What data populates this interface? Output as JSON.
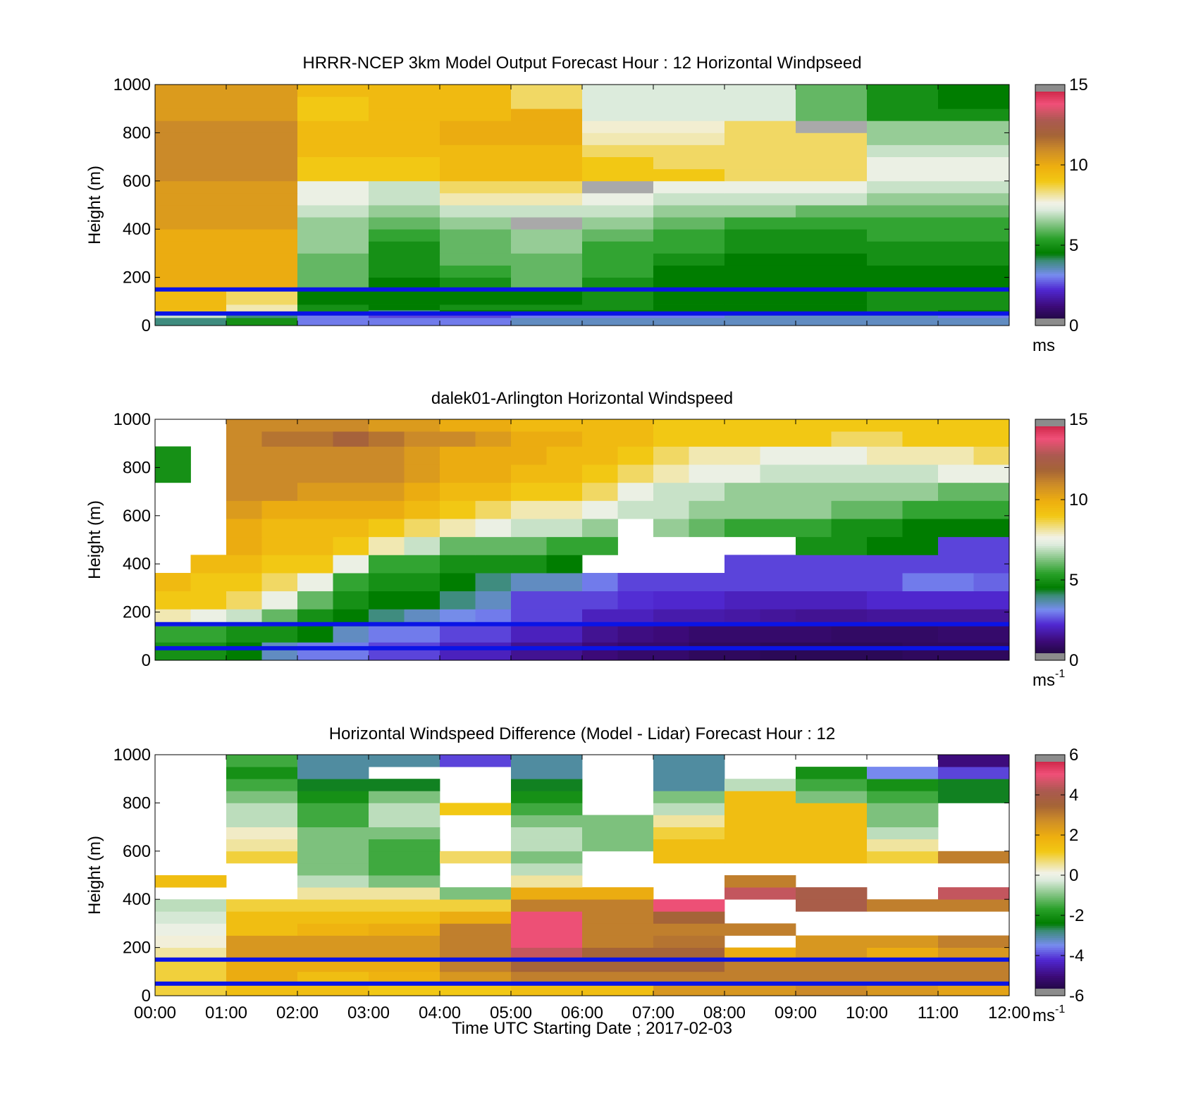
{
  "figure": {
    "xlabel": "Time UTC  Starting Date ; 2017-02-03",
    "x_tick_labels": [
      "00:00",
      "01:00",
      "02:00",
      "03:00",
      "04:00",
      "05:00",
      "06:00",
      "07:00",
      "08:00",
      "09:00",
      "10:00",
      "11:00",
      "12:00"
    ]
  },
  "chart_data": [
    {
      "type": "heatmap",
      "title": "HRRR-NCEP 3km Model Output   Forecast Hour : 12 Horizontal Windpseed",
      "ylabel": "Height (m)",
      "xlim": [
        0,
        12
      ],
      "ylim": [
        0,
        1000
      ],
      "y_ticks": [
        0,
        200,
        400,
        600,
        800,
        1000
      ],
      "grid": false,
      "colorbar": {
        "range": [
          0,
          15
        ],
        "ticks": [
          0,
          5,
          10,
          15
        ],
        "unit_base": "ms",
        "unit_sup": ""
      },
      "highlight_heights_m": [
        150,
        50
      ],
      "highlight_color": "#0a14e6",
      "time_columns_h": [
        0,
        1,
        2,
        3,
        4,
        5,
        6,
        7,
        8,
        9,
        10,
        11
      ],
      "heights_m": [
        25,
        40,
        55,
        75,
        100,
        125,
        175,
        225,
        275,
        325,
        375,
        425,
        475,
        525,
        575,
        625,
        675,
        725,
        775,
        825,
        875,
        925,
        975
      ],
      "values": [
        [
          4,
          5,
          3,
          3,
          3,
          3.5,
          3.5,
          3.5,
          3.5,
          3.5,
          3.5,
          3.5
        ],
        [
          7,
          4,
          3,
          2.5,
          2.5,
          3,
          3,
          3,
          3.5,
          3.5,
          3.5,
          3
        ],
        [
          9,
          8,
          5,
          4,
          4.5,
          4.5,
          4.5,
          4.5,
          4.5,
          4.5,
          5,
          4.5
        ],
        [
          9.5,
          8,
          5,
          4.5,
          5,
          5,
          5,
          4.5,
          4.5,
          4.5,
          5,
          5
        ],
        [
          9.5,
          8.5,
          4.5,
          4.5,
          4.5,
          4.5,
          5,
          4.5,
          4.5,
          4.5,
          5,
          5
        ],
        [
          9.5,
          8.5,
          4.5,
          4.5,
          4.5,
          4.5,
          5,
          4.5,
          4.5,
          4.5,
          5,
          5
        ],
        [
          10,
          10,
          6,
          4.5,
          5,
          6,
          5,
          4.5,
          4.5,
          4.5,
          4.5,
          4.5
        ],
        [
          10,
          10,
          6,
          5,
          5.5,
          6,
          5.5,
          4.5,
          4.5,
          4.5,
          4.5,
          4.5
        ],
        [
          10,
          10,
          6,
          5,
          6,
          6,
          5.5,
          5,
          4.5,
          4.5,
          5,
          5
        ],
        [
          10,
          10,
          6.5,
          5,
          6,
          6.5,
          5.5,
          5.5,
          5,
          5,
          5,
          5
        ],
        [
          10,
          10,
          6.5,
          5.5,
          6,
          6.5,
          6,
          5.5,
          5,
          5,
          5.5,
          5.5
        ],
        [
          10.5,
          10.5,
          6.5,
          6,
          6.5,
          15.5,
          6.5,
          6,
          5.5,
          5.5,
          5.5,
          5.5
        ],
        [
          10.5,
          10.5,
          7,
          6.5,
          7,
          7,
          7,
          6.5,
          6.5,
          6,
          6,
          6
        ],
        [
          10.5,
          10.5,
          7.5,
          7,
          8,
          8,
          7.5,
          7,
          7,
          7,
          6.5,
          6.5
        ],
        [
          10.5,
          10.5,
          7.5,
          7,
          8.5,
          8.5,
          15.5,
          7.5,
          7.5,
          7.5,
          7,
          7
        ],
        [
          11,
          11,
          9,
          9,
          9.5,
          9.5,
          9,
          9,
          8.5,
          8.5,
          7.5,
          7.5
        ],
        [
          11,
          11,
          9,
          9,
          9.5,
          9.5,
          9,
          8.5,
          8.5,
          8.5,
          7.5,
          7.5
        ],
        [
          11,
          11,
          9.5,
          9.5,
          9.5,
          9.5,
          8.5,
          8.5,
          8.5,
          8.5,
          7,
          7
        ],
        [
          11,
          11,
          9.5,
          9.5,
          10,
          10,
          8,
          8,
          8.5,
          8.5,
          6.5,
          6.5
        ],
        [
          11,
          11,
          9.5,
          9.5,
          10,
          10,
          7.8,
          7.8,
          8.5,
          15.5,
          6.5,
          6.5
        ],
        [
          10.5,
          10.5,
          9,
          9.5,
          9.5,
          10,
          7.2,
          7.2,
          7.2,
          6,
          5,
          5
        ],
        [
          10.5,
          10.5,
          9,
          9.5,
          9.5,
          8.5,
          7.2,
          7.2,
          7.2,
          6,
          5,
          4.5
        ],
        [
          10.5,
          10.5,
          9.5,
          9.5,
          9.5,
          8.5,
          7.2,
          7.2,
          7.2,
          6,
          5,
          4.5
        ]
      ]
    },
    {
      "type": "heatmap",
      "title": "dalek01-Arlington  Horizontal Windspeed",
      "ylabel": "Height (m)",
      "xlim": [
        0,
        12
      ],
      "ylim": [
        0,
        1000
      ],
      "y_ticks": [
        0,
        200,
        400,
        600,
        800,
        1000
      ],
      "grid": false,
      "colorbar": {
        "range": [
          0,
          15
        ],
        "ticks": [
          0,
          5,
          10,
          15
        ],
        "unit_base": "ms",
        "unit_sup": "-1"
      },
      "highlight_heights_m": [
        150,
        50
      ],
      "highlight_color": "#0a14e6",
      "time_columns_h": [
        0,
        0.5,
        1,
        1.5,
        2,
        2.5,
        3,
        3.5,
        4,
        4.5,
        5,
        5.5,
        6,
        6.5,
        7,
        7.5,
        8,
        8.5,
        9,
        9.5,
        10,
        10.5,
        11,
        11.5
      ],
      "heights_m": [
        40,
        110,
        175,
        250,
        325,
        400,
        475,
        550,
        625,
        700,
        775,
        850,
        925,
        975
      ],
      "values": [
        [
          5,
          5,
          4.5,
          3.5,
          3,
          3,
          2.5,
          2.5,
          2,
          2,
          1.5,
          1.5,
          1.2,
          1,
          1,
          0.8,
          0.8,
          0.7,
          0.7,
          0.7,
          0.7,
          0.8,
          0.8,
          0.8
        ],
        [
          5.5,
          5.5,
          5,
          5,
          4.5,
          3.5,
          3,
          3,
          2.5,
          2.5,
          2,
          2,
          1.5,
          1.3,
          1.2,
          1,
          1,
          1,
          1,
          0.9,
          0.9,
          0.9,
          1,
          1
        ],
        [
          8,
          7.5,
          7,
          6,
          5,
          4.5,
          4,
          3.5,
          3.2,
          3,
          2.5,
          2.5,
          2,
          2,
          1.8,
          1.8,
          1.7,
          1.6,
          1.5,
          1.5,
          1.6,
          1.6,
          1.6,
          1.6
        ],
        [
          9,
          9,
          8.5,
          7.5,
          6,
          5,
          4.5,
          4.5,
          4,
          3.5,
          2.5,
          2.5,
          2.5,
          2.3,
          2.2,
          2.2,
          2,
          2,
          2,
          2,
          2.2,
          2.2,
          2.2,
          2.2
        ],
        [
          9.5,
          9,
          9,
          8.5,
          7.5,
          5.5,
          5,
          5,
          4.5,
          4,
          3.5,
          3.5,
          3,
          2.5,
          2.5,
          2.5,
          2.5,
          2.5,
          2.5,
          2.5,
          2.5,
          3,
          3,
          2.8
        ],
        [
          null,
          9.5,
          9.5,
          9,
          9,
          7.5,
          5.5,
          5.5,
          5,
          5,
          5,
          4.5,
          null,
          null,
          null,
          null,
          2.5,
          2.5,
          2.5,
          2.5,
          2.5,
          2.5,
          2.5,
          2.5
        ],
        [
          null,
          null,
          10,
          9.5,
          9.5,
          9,
          8,
          7,
          6,
          6,
          6,
          5.5,
          5.5,
          null,
          null,
          null,
          null,
          null,
          5,
          5,
          4.5,
          4.5,
          2.5,
          2.5
        ],
        [
          null,
          null,
          10,
          9.5,
          9.5,
          9.5,
          9,
          8.5,
          8,
          7.5,
          7,
          7,
          6.5,
          null,
          6.5,
          6,
          5.5,
          5.5,
          5.5,
          5,
          5,
          4.5,
          4.5,
          4.5
        ],
        [
          null,
          null,
          10.5,
          10,
          10,
          10,
          10,
          9.5,
          9,
          8.5,
          8,
          8,
          7.5,
          7,
          7,
          6.5,
          6.5,
          6.5,
          6.5,
          6,
          6,
          5.5,
          5.5,
          5.5
        ],
        [
          null,
          null,
          11,
          11,
          10.5,
          10.5,
          10.5,
          10,
          9.5,
          9.5,
          9,
          9,
          8.5,
          7.5,
          7,
          7,
          6.5,
          6.5,
          6.5,
          6.5,
          6.5,
          6.5,
          6,
          6
        ],
        [
          5,
          null,
          11,
          11,
          11,
          11,
          11,
          10.5,
          10,
          10,
          9.5,
          9.5,
          9,
          8.5,
          8,
          7.5,
          7.5,
          7,
          7,
          7,
          7,
          7,
          7.5,
          7.5
        ],
        [
          5,
          null,
          11,
          11,
          11,
          11,
          11,
          10.5,
          10,
          10,
          10,
          9.5,
          9.5,
          9,
          8.5,
          8,
          8,
          7.5,
          7.5,
          7.5,
          8,
          8,
          8,
          8.5
        ],
        [
          null,
          null,
          11,
          11.5,
          11.5,
          12,
          11.5,
          11,
          11,
          10.5,
          10,
          10,
          9.5,
          9.5,
          9,
          9,
          9,
          9,
          9,
          8.5,
          8.5,
          9,
          9,
          9
        ],
        [
          null,
          null,
          11,
          11,
          11,
          11,
          10.5,
          10.5,
          10,
          10,
          9.5,
          9.5,
          9.5,
          9.5,
          9,
          9,
          9,
          9,
          9,
          9,
          9,
          9,
          9,
          9
        ]
      ]
    },
    {
      "type": "heatmap",
      "title": "Horizontal Windspeed Difference (Model - Lidar) Forecast Hour : 12",
      "ylabel": "Height (m)",
      "xlim": [
        0,
        12
      ],
      "ylim": [
        0,
        1000
      ],
      "y_ticks": [
        0,
        200,
        400,
        600,
        800,
        1000
      ],
      "grid": false,
      "colorbar": {
        "range": [
          -6,
          6
        ],
        "ticks": [
          -6,
          -4,
          -2,
          0,
          2,
          4,
          6
        ],
        "unit_base": "ms",
        "unit_sup": "-1"
      },
      "highlight_heights_m": [
        150,
        50
      ],
      "highlight_color": "#0a14e6",
      "time_columns_h": [
        0,
        1,
        2,
        3,
        4,
        5,
        6,
        7,
        8,
        9,
        10,
        11
      ],
      "heights_m": [
        25,
        75,
        125,
        175,
        225,
        275,
        325,
        375,
        425,
        475,
        525,
        575,
        625,
        675,
        725,
        775,
        825,
        875,
        925,
        975
      ],
      "values": [
        [
          1,
          1.5,
          1.5,
          1.2,
          1.2,
          1.5,
          1.5,
          2.5,
          2.5,
          2.8,
          2.5,
          2.2
        ],
        [
          1,
          2,
          1.5,
          1.8,
          2.5,
          3,
          3,
          3,
          3,
          3,
          3,
          3
        ],
        [
          1,
          2,
          2,
          2,
          3,
          3.5,
          3.5,
          3.5,
          3,
          3,
          3,
          3
        ],
        [
          0.5,
          2.5,
          2.5,
          2.5,
          3,
          4.5,
          3.5,
          3.5,
          2,
          2.5,
          2,
          2.5
        ],
        [
          0.2,
          2.5,
          2.5,
          2.5,
          3,
          5,
          3,
          3.2,
          null,
          2.5,
          2.5,
          3
        ],
        [
          0,
          1.5,
          1.8,
          2,
          3,
          5,
          3,
          3,
          3,
          null,
          null,
          null
        ],
        [
          -0.3,
          1.5,
          1.5,
          1.5,
          2,
          5,
          3,
          3.5,
          null,
          null,
          null,
          null
        ],
        [
          -0.5,
          1,
          1,
          1,
          1,
          3,
          3,
          5,
          null,
          4,
          3,
          3
        ],
        [
          null,
          null,
          0.5,
          0.5,
          -1,
          2,
          2,
          null,
          4.5,
          4,
          null,
          4.5
        ],
        [
          1.5,
          null,
          -0.5,
          -1,
          null,
          0.5,
          null,
          null,
          3,
          null,
          null,
          null
        ],
        [
          null,
          null,
          -1,
          -1.5,
          null,
          -0.5,
          null,
          null,
          null,
          null,
          null,
          null
        ],
        [
          null,
          1,
          -1,
          -1.5,
          0.8,
          -1,
          null,
          1.5,
          1.5,
          1.5,
          1,
          3
        ],
        [
          null,
          0.5,
          -1,
          -1.5,
          null,
          -0.5,
          -1,
          1.5,
          1.5,
          1.5,
          0.5,
          null
        ],
        [
          null,
          0.3,
          -1,
          -1,
          null,
          -0.5,
          -1,
          1,
          1.5,
          1.5,
          -0.5,
          null
        ],
        [
          null,
          -0.5,
          -1.5,
          -0.5,
          null,
          -1,
          -1,
          0.5,
          1.5,
          1.5,
          -1,
          null
        ],
        [
          null,
          -0.5,
          -1.5,
          -0.5,
          1.2,
          -1.5,
          null,
          -0.5,
          1.5,
          1.5,
          -1,
          null
        ],
        [
          null,
          -1,
          -2,
          -1,
          null,
          -2,
          null,
          -1,
          1.5,
          -1,
          -1.5,
          -2.5
        ],
        [
          null,
          -1.5,
          -2.5,
          -2.5,
          null,
          -2.5,
          null,
          -3,
          -0.5,
          -1.5,
          -2,
          -2.5
        ],
        [
          null,
          -2,
          -3,
          null,
          null,
          -3,
          null,
          -3,
          null,
          -2,
          -3.5,
          -4
        ],
        [
          null,
          -1.5,
          -3,
          -3,
          -4,
          -3,
          null,
          -3,
          null,
          null,
          null,
          -5
        ]
      ]
    }
  ]
}
